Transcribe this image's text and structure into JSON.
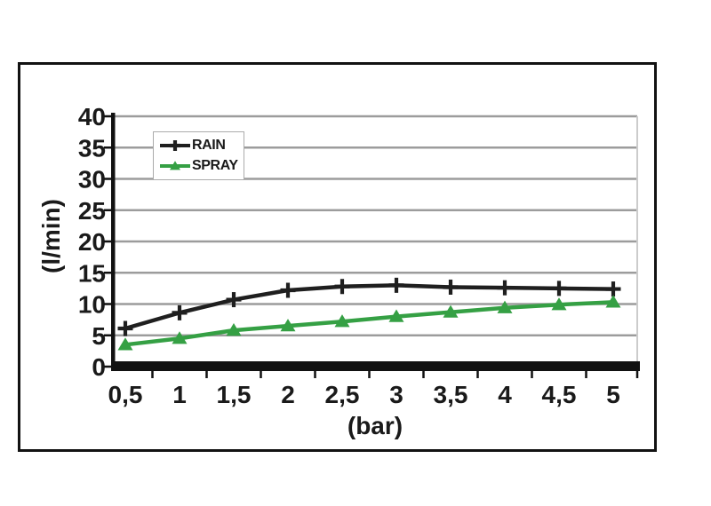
{
  "colors": {
    "background": "#ffffff",
    "frame_border": "#121212",
    "axis": "#111111",
    "grid": "#9c9c9c",
    "plot_right_border": "#cccccc",
    "legend_border": "#ababab",
    "text": "#1a1a1a",
    "rain_series": "#1f1f1f",
    "spray_series": "#35a044"
  },
  "chart_data": {
    "type": "line",
    "title": "",
    "xlabel": "(bar)",
    "ylabel": "(l/min)",
    "categories": [
      "0,5",
      "1",
      "1,5",
      "2",
      "2,5",
      "3",
      "3,5",
      "4",
      "4,5",
      "5"
    ],
    "x_numeric": [
      0.5,
      1,
      1.5,
      2,
      2.5,
      3,
      3.5,
      4,
      4.5,
      5
    ],
    "decimal_separator": ",",
    "ylim": [
      0,
      40
    ],
    "y_ticks": [
      0,
      5,
      10,
      15,
      20,
      25,
      30,
      35,
      40
    ],
    "grid": true,
    "legend_position": "upper-left-inside",
    "series": [
      {
        "name": "RAIN",
        "color": "#1f1f1f",
        "marker": "plus",
        "values": [
          6.1,
          8.6,
          10.7,
          12.2,
          12.8,
          13.0,
          12.7,
          12.6,
          12.5,
          12.4
        ]
      },
      {
        "name": "SPRAY",
        "color": "#35a044",
        "marker": "triangle-up",
        "values": [
          3.5,
          4.5,
          5.8,
          6.5,
          7.2,
          8.0,
          8.7,
          9.4,
          9.9,
          10.3
        ]
      }
    ]
  }
}
